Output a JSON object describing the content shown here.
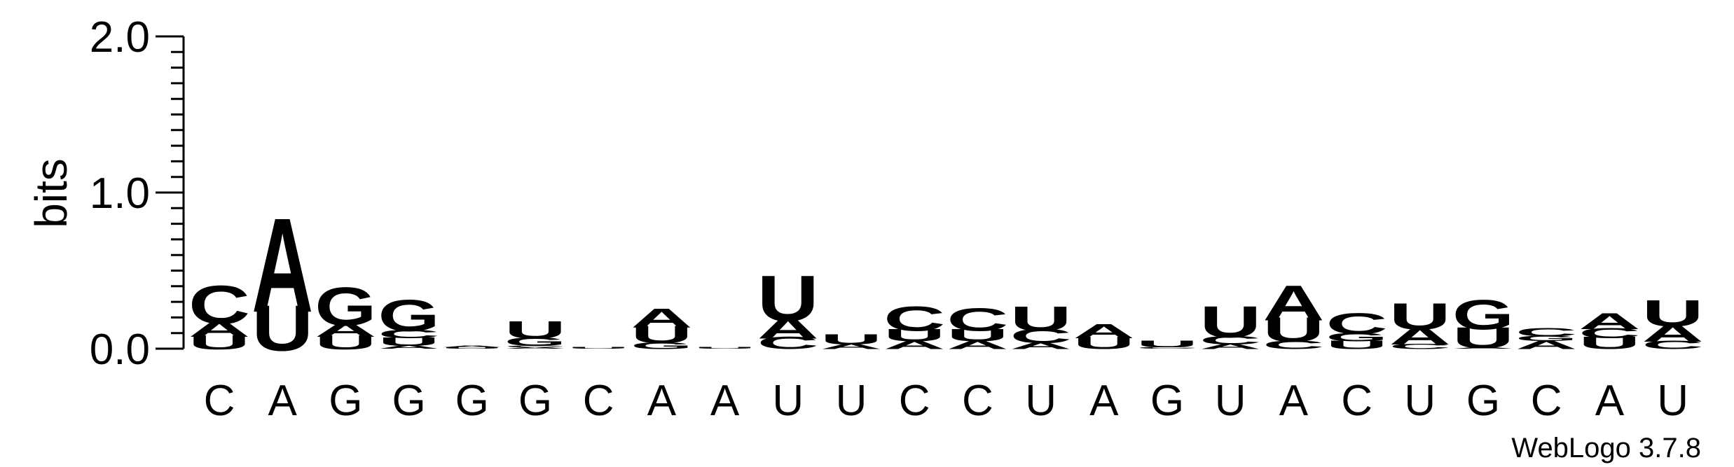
{
  "colors": {
    "A": "#f28c0a",
    "U": "#f28c0a",
    "C": "#1414eb",
    "G": "#1414eb",
    "axis": "#000000"
  },
  "footer": {
    "credit": "WebLogo 3.7.8"
  },
  "chart_data": {
    "type": "sequence-logo",
    "ylabel": "bits",
    "ylim": [
      0,
      2.0
    ],
    "yticks": [
      "0.0",
      "1.0",
      "2.0"
    ],
    "sequence": [
      "C",
      "A",
      "G",
      "G",
      "G",
      "G",
      "C",
      "A",
      "A",
      "U",
      "U",
      "C",
      "C",
      "U",
      "A",
      "G",
      "U",
      "A",
      "C",
      "U",
      "G",
      "C",
      "A",
      "U"
    ],
    "positions": [
      {
        "label": "C",
        "stack": [
          {
            "letter": "U",
            "height": 0.08
          },
          {
            "letter": "A",
            "height": 0.09
          },
          {
            "letter": "C",
            "height": 0.22
          }
        ]
      },
      {
        "label": "A",
        "stack": [
          {
            "letter": "U",
            "height": 0.26
          },
          {
            "letter": "A",
            "height": 0.54
          }
        ]
      },
      {
        "label": "G",
        "stack": [
          {
            "letter": "U",
            "height": 0.08
          },
          {
            "letter": "A",
            "height": 0.08
          },
          {
            "letter": "G",
            "height": 0.22
          }
        ]
      },
      {
        "label": "G",
        "stack": [
          {
            "letter": "A",
            "height": 0.02
          },
          {
            "letter": "U",
            "height": 0.05
          },
          {
            "letter": "C",
            "height": 0.05
          },
          {
            "letter": "G",
            "height": 0.18
          }
        ]
      },
      {
        "label": "G",
        "stack": [
          {
            "letter": "U",
            "height": 0.01
          },
          {
            "letter": "A",
            "height": 0.01
          }
        ]
      },
      {
        "label": "G",
        "stack": [
          {
            "letter": "A",
            "height": 0.01
          },
          {
            "letter": "C",
            "height": 0.01
          },
          {
            "letter": "G",
            "height": 0.05
          },
          {
            "letter": "U",
            "height": 0.1
          }
        ]
      },
      {
        "label": "C",
        "stack": [
          {
            "letter": "U",
            "height": 0.01
          }
        ]
      },
      {
        "label": "A",
        "stack": [
          {
            "letter": "G",
            "height": 0.04
          },
          {
            "letter": "U",
            "height": 0.1
          },
          {
            "letter": "A",
            "height": 0.11
          }
        ]
      },
      {
        "label": "A",
        "stack": [
          {
            "letter": "U",
            "height": 0.01
          }
        ]
      },
      {
        "label": "U",
        "stack": [
          {
            "letter": "C",
            "height": 0.07
          },
          {
            "letter": "A",
            "height": 0.12
          },
          {
            "letter": "U",
            "height": 0.26
          }
        ]
      },
      {
        "label": "U",
        "stack": [
          {
            "letter": "A",
            "height": 0.03
          },
          {
            "letter": "U",
            "height": 0.06
          }
        ]
      },
      {
        "label": "C",
        "stack": [
          {
            "letter": "A",
            "height": 0.05
          },
          {
            "letter": "U",
            "height": 0.07
          },
          {
            "letter": "C",
            "height": 0.14
          }
        ]
      },
      {
        "label": "C",
        "stack": [
          {
            "letter": "A",
            "height": 0.05
          },
          {
            "letter": "U",
            "height": 0.07
          },
          {
            "letter": "C",
            "height": 0.13
          }
        ]
      },
      {
        "label": "U",
        "stack": [
          {
            "letter": "A",
            "height": 0.04
          },
          {
            "letter": "C",
            "height": 0.08
          },
          {
            "letter": "U",
            "height": 0.14
          }
        ]
      },
      {
        "label": "A",
        "stack": [
          {
            "letter": "U",
            "height": 0.07
          },
          {
            "letter": "A",
            "height": 0.08
          }
        ]
      },
      {
        "label": "G",
        "stack": [
          {
            "letter": "C",
            "height": 0.01
          },
          {
            "letter": "U",
            "height": 0.04
          }
        ]
      },
      {
        "label": "U",
        "stack": [
          {
            "letter": "A",
            "height": 0.03
          },
          {
            "letter": "C",
            "height": 0.05
          },
          {
            "letter": "U",
            "height": 0.18
          }
        ]
      },
      {
        "label": "A",
        "stack": [
          {
            "letter": "C",
            "height": 0.05
          },
          {
            "letter": "U",
            "height": 0.14
          },
          {
            "letter": "A",
            "height": 0.2
          }
        ]
      },
      {
        "label": "C",
        "stack": [
          {
            "letter": "U",
            "height": 0.05
          },
          {
            "letter": "G",
            "height": 0.05
          },
          {
            "letter": "C",
            "height": 0.12
          }
        ]
      },
      {
        "label": "U",
        "stack": [
          {
            "letter": "C",
            "height": 0.03
          },
          {
            "letter": "A",
            "height": 0.1
          },
          {
            "letter": "U",
            "height": 0.15
          }
        ]
      },
      {
        "label": "G",
        "stack": [
          {
            "letter": "A",
            "height": 0.01
          },
          {
            "letter": "U",
            "height": 0.12
          },
          {
            "letter": "G",
            "height": 0.17
          }
        ]
      },
      {
        "label": "C",
        "stack": [
          {
            "letter": "A",
            "height": 0.05
          },
          {
            "letter": "G",
            "height": 0.03
          },
          {
            "letter": "C",
            "height": 0.05
          }
        ]
      },
      {
        "label": "A",
        "stack": [
          {
            "letter": "U",
            "height": 0.07
          },
          {
            "letter": "C",
            "height": 0.06
          },
          {
            "letter": "A",
            "height": 0.09
          }
        ]
      },
      {
        "label": "U",
        "stack": [
          {
            "letter": "C",
            "height": 0.05
          },
          {
            "letter": "A",
            "height": 0.1
          },
          {
            "letter": "U",
            "height": 0.15
          }
        ]
      }
    ]
  }
}
